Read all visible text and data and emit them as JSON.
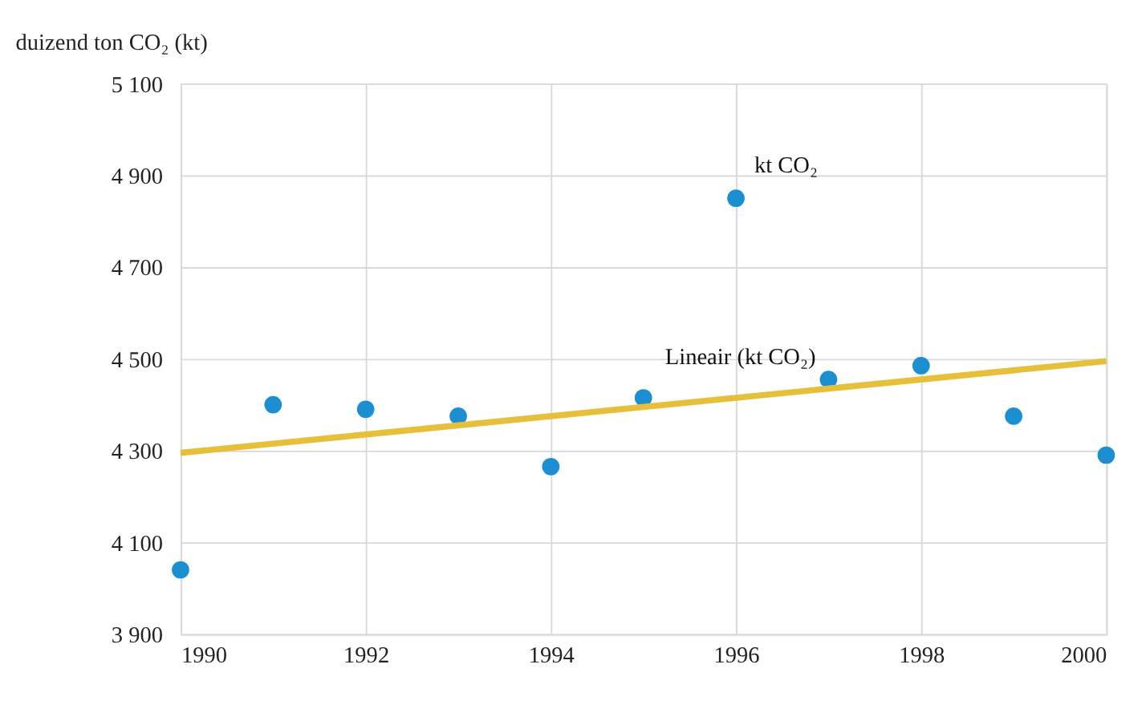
{
  "chart_data": {
    "type": "scatter",
    "ylabel": "duizend ton CO₂ (kt)",
    "x": [
      1990,
      1991,
      1992,
      1993,
      1994,
      1995,
      1996,
      1997,
      1998,
      1999,
      2000
    ],
    "series": [
      {
        "color": "#1b8fd2",
        "values": [
          4040,
          4400,
          4390,
          4375,
          4265,
          4415,
          4850,
          4455,
          4485,
          4375,
          4290
        ]
      },
      {
        "type": "line",
        "marker": "none",
        "color": "#e6c03a",
        "x": [
          1990,
          2000
        ],
        "values": [
          4295,
          4495
        ]
      }
    ],
    "xlim": [
      1990,
      2000
    ],
    "xticks": [
      1990,
      1992,
      1994,
      1996,
      1998,
      2000
    ],
    "ylim": [
      3900,
      5100
    ],
    "yticks": [
      {
        "value": 3900,
        "label": "3 900"
      },
      {
        "value": 4100,
        "label": "4 100"
      },
      {
        "value": 4300,
        "label": "4 300"
      },
      {
        "value": 4500,
        "label": "4 500"
      },
      {
        "value": 4700,
        "label": "4 700"
      },
      {
        "value": 4900,
        "label": "4 900"
      },
      {
        "value": 5100,
        "label": "5 100"
      }
    ],
    "grid": true,
    "marker": "circle",
    "annotations": [
      {
        "text": "kt CO₂",
        "x": 1996,
        "y": 4850
      },
      {
        "text": "Lineair (kt CO₂)",
        "x": 1995.4,
        "y": 4405
      }
    ]
  }
}
